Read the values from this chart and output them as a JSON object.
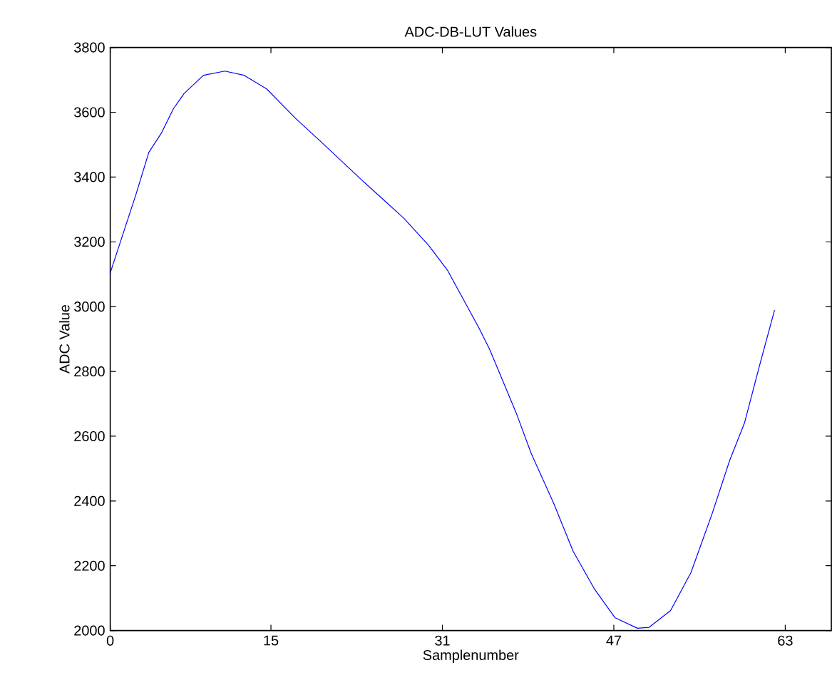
{
  "chart_data": {
    "type": "line",
    "title": "ADC-DB-LUT Values",
    "xlabel": "Samplenumber",
    "ylabel": "ADC Value",
    "xlim": [
      0,
      67.3
    ],
    "ylim": [
      2000,
      3800
    ],
    "xticks": [
      0,
      15,
      31,
      47,
      63
    ],
    "yticks": [
      2000,
      2200,
      2400,
      2600,
      2800,
      3000,
      3200,
      3400,
      3600,
      3800
    ],
    "grid": false,
    "series": [
      {
        "color": "#0000ff",
        "x": [
          0,
          2.4,
          3.6,
          4.8,
          5.9,
          6.9,
          8.7,
          10.7,
          12.5,
          14.6,
          17.3,
          19.6,
          23.5,
          25.6,
          27.4,
          29.7,
          31.5,
          34.4,
          35.4,
          37.9,
          39.3,
          41.4,
          43.2,
          45.2,
          47.1,
          49.2,
          50.3,
          52.3,
          54.2,
          56.2,
          57.8,
          59.2,
          60.6,
          62.0
        ],
        "values": [
          3104,
          3346,
          3476,
          3537,
          3611,
          3658,
          3714,
          3727,
          3714,
          3672,
          3581,
          3511,
          3390,
          3327,
          3273,
          3190,
          3111,
          2935,
          2869,
          2671,
          2546,
          2392,
          2245,
          2128,
          2040,
          2007,
          2010,
          2062,
          2179,
          2363,
          2524,
          2641,
          2818,
          2989
        ]
      }
    ]
  }
}
